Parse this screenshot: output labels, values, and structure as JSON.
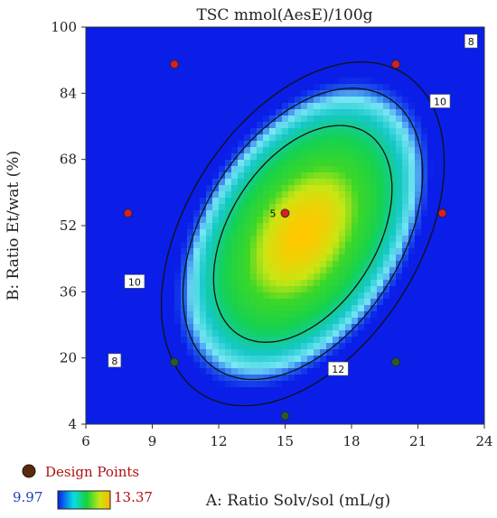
{
  "chart_data": {
    "type": "contour",
    "title": "TSC mmol(AesE)/100g",
    "xlabel": "A: Ratio Solv/sol (mL/g)",
    "ylabel": "B: Ratio Et/wat (%)",
    "xlim": [
      6,
      24
    ],
    "ylim": [
      4,
      100
    ],
    "x_ticks": [
      "6",
      "9",
      "12",
      "15",
      "18",
      "21",
      "24"
    ],
    "y_ticks": [
      "4",
      "20",
      "36",
      "52",
      "68",
      "84",
      "100"
    ],
    "contours": [
      {
        "label": "8",
        "label_positions": [
          [
            7.3,
            19.3
          ],
          [
            23.4,
            96.5
          ]
        ]
      },
      {
        "label": "10",
        "label_positions": [
          [
            8.2,
            38.4
          ],
          [
            22.0,
            82.0
          ]
        ]
      },
      {
        "label": "12",
        "label_positions": [
          [
            17.4,
            17.3
          ]
        ]
      }
    ],
    "design_points": [
      {
        "x": 10,
        "y": 91,
        "color": "#d62020"
      },
      {
        "x": 20,
        "y": 91,
        "color": "#d62020"
      },
      {
        "x": 7.9,
        "y": 55,
        "color": "#d62020"
      },
      {
        "x": 15,
        "y": 55,
        "color": "#d62020",
        "label": "5"
      },
      {
        "x": 22.1,
        "y": 55,
        "color": "#d62020"
      },
      {
        "x": 10,
        "y": 19,
        "color": "#2a5a2a"
      },
      {
        "x": 20,
        "y": 19,
        "color": "#2a5a2a"
      },
      {
        "x": 15,
        "y": 6,
        "color": "#2a5a2a"
      }
    ],
    "legend": {
      "design_points_label": "Design Points",
      "color_min": "9.97",
      "color_max": "13.37"
    },
    "colors": {
      "low": "#0a1ee8",
      "mid": "#1ed250",
      "high": "#ffc800",
      "contour_line": "#111111",
      "design_point_marker": "#5a2a10",
      "legend_text": "#b01010",
      "min_text": "#2040c0"
    }
  }
}
